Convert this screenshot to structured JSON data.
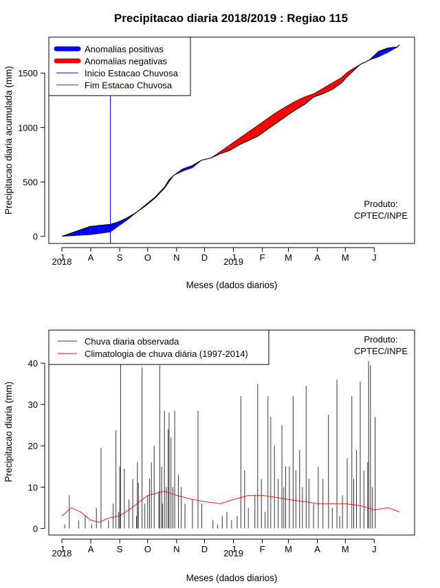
{
  "figure_title": "Precipitacao diaria 2018/2019 : Regiao 115",
  "colors": {
    "positive_anomaly": "#0000ff",
    "negative_anomaly": "#ff0000",
    "start_line": "#0000ff",
    "end_line": "#ff0000",
    "observed": "#333333",
    "climatology": "#ff0000"
  },
  "chart_data": [
    {
      "type": "area",
      "title": "Precipitacao diaria 2018/2019 : Regiao 115",
      "xlabel": "Meses (dados diarios)",
      "ylabel": "Precipitacao diaria acumulada (mm)",
      "xlim": [
        0,
        365
      ],
      "ylim": [
        -65,
        1830
      ],
      "yticks": [
        0,
        500,
        1000,
        1500
      ],
      "month_ticks": [
        {
          "label": "J",
          "day": 0
        },
        {
          "label": "A",
          "day": 31
        },
        {
          "label": "S",
          "day": 62
        },
        {
          "label": "O",
          "day": 92
        },
        {
          "label": "N",
          "day": 123
        },
        {
          "label": "D",
          "day": 153
        },
        {
          "label": "J",
          "day": 184
        },
        {
          "label": "F",
          "day": 215
        },
        {
          "label": "M",
          "day": 243
        },
        {
          "label": "A",
          "day": 274
        },
        {
          "label": "M",
          "day": 304
        },
        {
          "label": "J",
          "day": 335
        }
      ],
      "year_labels": [
        {
          "label": "2018",
          "day": 0
        },
        {
          "label": "2019",
          "day": 184
        }
      ],
      "legend": [
        {
          "label": "Anomalias positivas",
          "style": "thick",
          "color": "#0000ff"
        },
        {
          "label": "Anomalias negativas",
          "style": "thick",
          "color": "#ff0000"
        },
        {
          "label": "Inicio Estacao Chuvosa",
          "style": "thin",
          "color": "#0000ff"
        },
        {
          "label": "Fim Estacao Chuvosa",
          "style": "thin",
          "color": "#ff0000"
        }
      ],
      "annotation": [
        "Produto:",
        "CPTEC/INPE"
      ],
      "rainy_season_start_day": 52,
      "series": [
        {
          "name": "Acumulado observado",
          "x": [
            0,
            10,
            20,
            30,
            40,
            52,
            60,
            70,
            80,
            90,
            100,
            110,
            115,
            120,
            130,
            140,
            150,
            160,
            170,
            180,
            190,
            200,
            210,
            220,
            230,
            240,
            250,
            260,
            270,
            280,
            290,
            300,
            305,
            310,
            320,
            330,
            340,
            350,
            360,
            362
          ],
          "values": [
            0,
            30,
            60,
            90,
            100,
            110,
            130,
            170,
            220,
            290,
            360,
            450,
            520,
            560,
            620,
            650,
            700,
            720,
            760,
            790,
            840,
            880,
            920,
            980,
            1040,
            1100,
            1160,
            1210,
            1280,
            1310,
            1350,
            1410,
            1460,
            1500,
            1580,
            1620,
            1700,
            1730,
            1740,
            1760
          ]
        },
        {
          "name": "Acumulado climatologico",
          "x": [
            0,
            10,
            20,
            30,
            40,
            52,
            60,
            70,
            80,
            90,
            100,
            110,
            115,
            120,
            130,
            140,
            150,
            160,
            170,
            180,
            190,
            200,
            210,
            220,
            230,
            240,
            250,
            260,
            270,
            280,
            290,
            300,
            305,
            310,
            320,
            330,
            340,
            350,
            360,
            362
          ],
          "values": [
            0,
            5,
            10,
            15,
            25,
            40,
            90,
            150,
            220,
            280,
            350,
            440,
            500,
            560,
            600,
            630,
            700,
            720,
            780,
            840,
            900,
            960,
            1020,
            1080,
            1140,
            1190,
            1240,
            1280,
            1310,
            1360,
            1410,
            1460,
            1500,
            1530,
            1580,
            1620,
            1650,
            1690,
            1740,
            1760
          ]
        }
      ]
    },
    {
      "type": "bar",
      "title": "",
      "xlabel": "Meses (dados diarios)",
      "ylabel": "Precipitacao diaria (mm)",
      "xlim": [
        0,
        365
      ],
      "ylim": [
        -1.6,
        48
      ],
      "yticks": [
        0,
        10,
        20,
        30,
        40
      ],
      "month_ticks": [
        {
          "label": "J",
          "day": 0
        },
        {
          "label": "A",
          "day": 31
        },
        {
          "label": "S",
          "day": 62
        },
        {
          "label": "O",
          "day": 92
        },
        {
          "label": "N",
          "day": 123
        },
        {
          "label": "D",
          "day": 153
        },
        {
          "label": "J",
          "day": 184
        },
        {
          "label": "F",
          "day": 215
        },
        {
          "label": "M",
          "day": 243
        },
        {
          "label": "A",
          "day": 274
        },
        {
          "label": "M",
          "day": 304
        },
        {
          "label": "J",
          "day": 335
        }
      ],
      "year_labels": [
        {
          "label": "2018",
          "day": 0
        },
        {
          "label": "2019",
          "day": 184
        }
      ],
      "legend": [
        {
          "label": "Chuva diaria observada",
          "color": "#333333"
        },
        {
          "label": "Climatologia de chuva diária (1997-2014)",
          "color": "#ff0000"
        }
      ],
      "annotation": [
        "Produto:",
        "CPTEC/INPE"
      ],
      "observed": {
        "name": "Chuva diaria observada",
        "days": [
          3,
          8,
          18,
          25,
          32,
          37,
          42,
          50,
          55,
          58,
          61,
          62,
          63,
          67,
          72,
          76,
          80,
          81,
          82,
          86,
          89,
          92,
          94,
          96,
          99,
          104,
          105,
          107,
          108,
          110,
          112,
          114,
          115,
          117,
          119,
          121,
          125,
          128,
          132,
          140,
          146,
          150,
          162,
          167,
          172,
          177,
          182,
          188,
          192,
          196,
          200,
          207,
          210,
          214,
          218,
          221,
          224,
          228,
          232,
          236,
          238,
          240,
          244,
          248,
          251,
          255,
          258,
          262,
          265,
          270,
          275,
          280,
          286,
          290,
          295,
          298,
          301,
          306,
          311,
          313,
          316,
          320,
          324,
          328,
          329,
          331,
          333,
          336
        ],
        "values": [
          1,
          8,
          2,
          3,
          1,
          5,
          19.5,
          2,
          6,
          23.8,
          4,
          15,
          41,
          14.5,
          7,
          12,
          3,
          16,
          11,
          39,
          6,
          8,
          12,
          16,
          20,
          9,
          39.5,
          15,
          6,
          28.5,
          10,
          24,
          28,
          22,
          10,
          28.5,
          13,
          10,
          6,
          7,
          28.5,
          6,
          2,
          1,
          3,
          4,
          2,
          3,
          32,
          14,
          5,
          8,
          35,
          12,
          4,
          32,
          27,
          20,
          12,
          25,
          10,
          15,
          15,
          32,
          14,
          19,
          10,
          34.5,
          12,
          6,
          15,
          12,
          27.5,
          5,
          36,
          3,
          8,
          17,
          32,
          12,
          19,
          35.5,
          14,
          16,
          40.5,
          39.5,
          10,
          27
        ]
      },
      "climatology": {
        "name": "Climatologia de chuva diária (1997-2014)",
        "x": [
          0,
          10,
          20,
          31,
          40,
          50,
          62,
          75,
          92,
          110,
          123,
          140,
          153,
          170,
          184,
          200,
          215,
          230,
          243,
          260,
          274,
          290,
          304,
          320,
          335,
          350,
          362
        ],
        "values": [
          3,
          5,
          4,
          2,
          1.5,
          2.5,
          3,
          5,
          8,
          9,
          8,
          7,
          6.5,
          6,
          7,
          8,
          8,
          7.5,
          7,
          6.5,
          6,
          6,
          6,
          5.5,
          4.5,
          5,
          4
        ]
      }
    }
  ]
}
